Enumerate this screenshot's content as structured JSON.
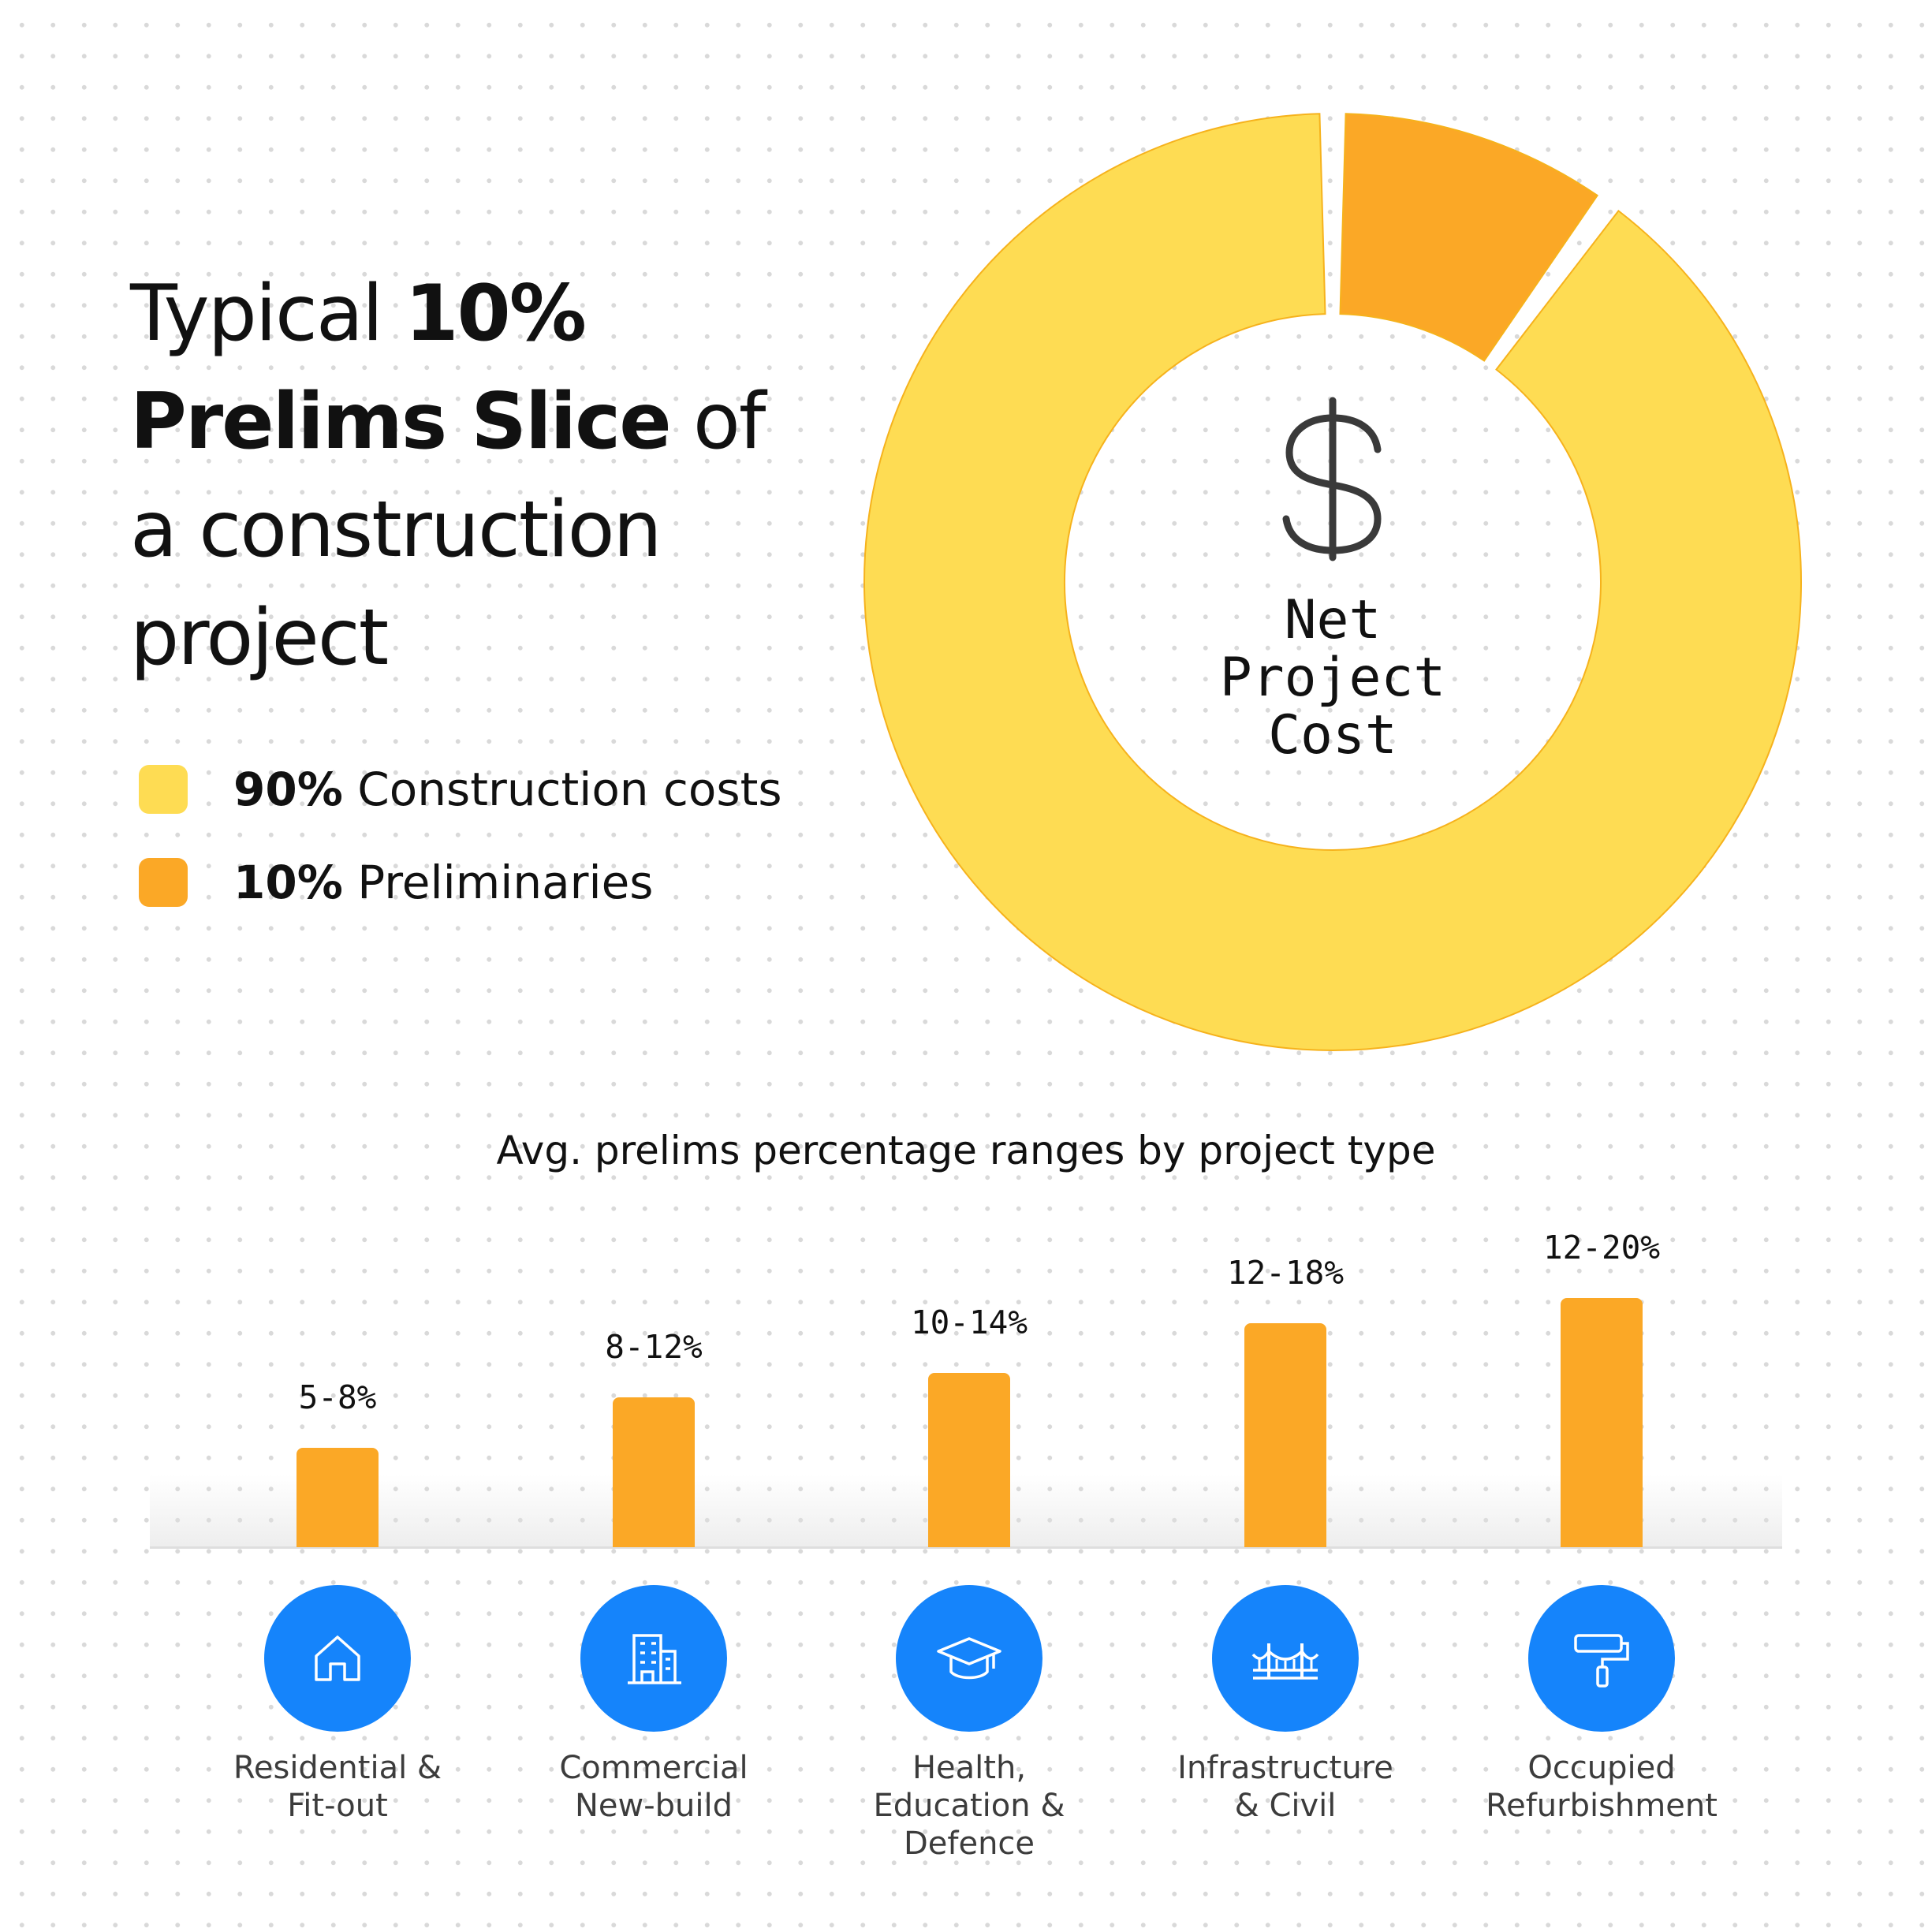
{
  "title": {
    "part1": "Typical ",
    "bold1": "10%",
    "bold2": "Prelims Slice",
    "part2": " of",
    "line3": "a construction",
    "line4": "project"
  },
  "colors": {
    "construction": "#fedc53",
    "preliminaries": "#fba826",
    "icon_circle": "#1584fb",
    "bar": "#fba826"
  },
  "legend": [
    {
      "pct": "90%",
      "label": " Construction costs",
      "color": "#fedc53"
    },
    {
      "pct": "10%",
      "label": " Preliminaries",
      "color": "#fba826"
    }
  ],
  "center": {
    "icon": "dollar-icon",
    "lines": [
      "Net",
      "Project",
      "Cost"
    ]
  },
  "chart_data": [
    {
      "type": "pie",
      "variant": "donut",
      "slices": [
        {
          "label": "Preliminaries",
          "value": 10,
          "color": "#fba826"
        },
        {
          "label": "Construction costs",
          "value": 90,
          "color": "#fedc53"
        }
      ],
      "center_text": "Net Project Cost"
    },
    {
      "type": "bar",
      "title": "Avg. prelims percentage ranges by project type",
      "categories": [
        [
          "Residential &",
          "Fit-out"
        ],
        [
          "Commercial",
          "New-build"
        ],
        [
          "Health,",
          "Education &",
          "Defence"
        ],
        [
          "Infrastructure",
          "& Civil"
        ],
        [
          "Occupied",
          "Refurbishment"
        ]
      ],
      "icons": [
        "house-icon",
        "office-building-icon",
        "graduation-cap-icon",
        "bridge-icon",
        "paint-roller-icon"
      ],
      "ranges": [
        [
          5,
          8
        ],
        [
          8,
          12
        ],
        [
          10,
          14
        ],
        [
          12,
          18
        ],
        [
          12,
          20
        ]
      ],
      "value_labels": [
        "5-8%",
        "8-12%",
        "10-14%",
        "12-18%",
        "12-20%"
      ]
    }
  ]
}
